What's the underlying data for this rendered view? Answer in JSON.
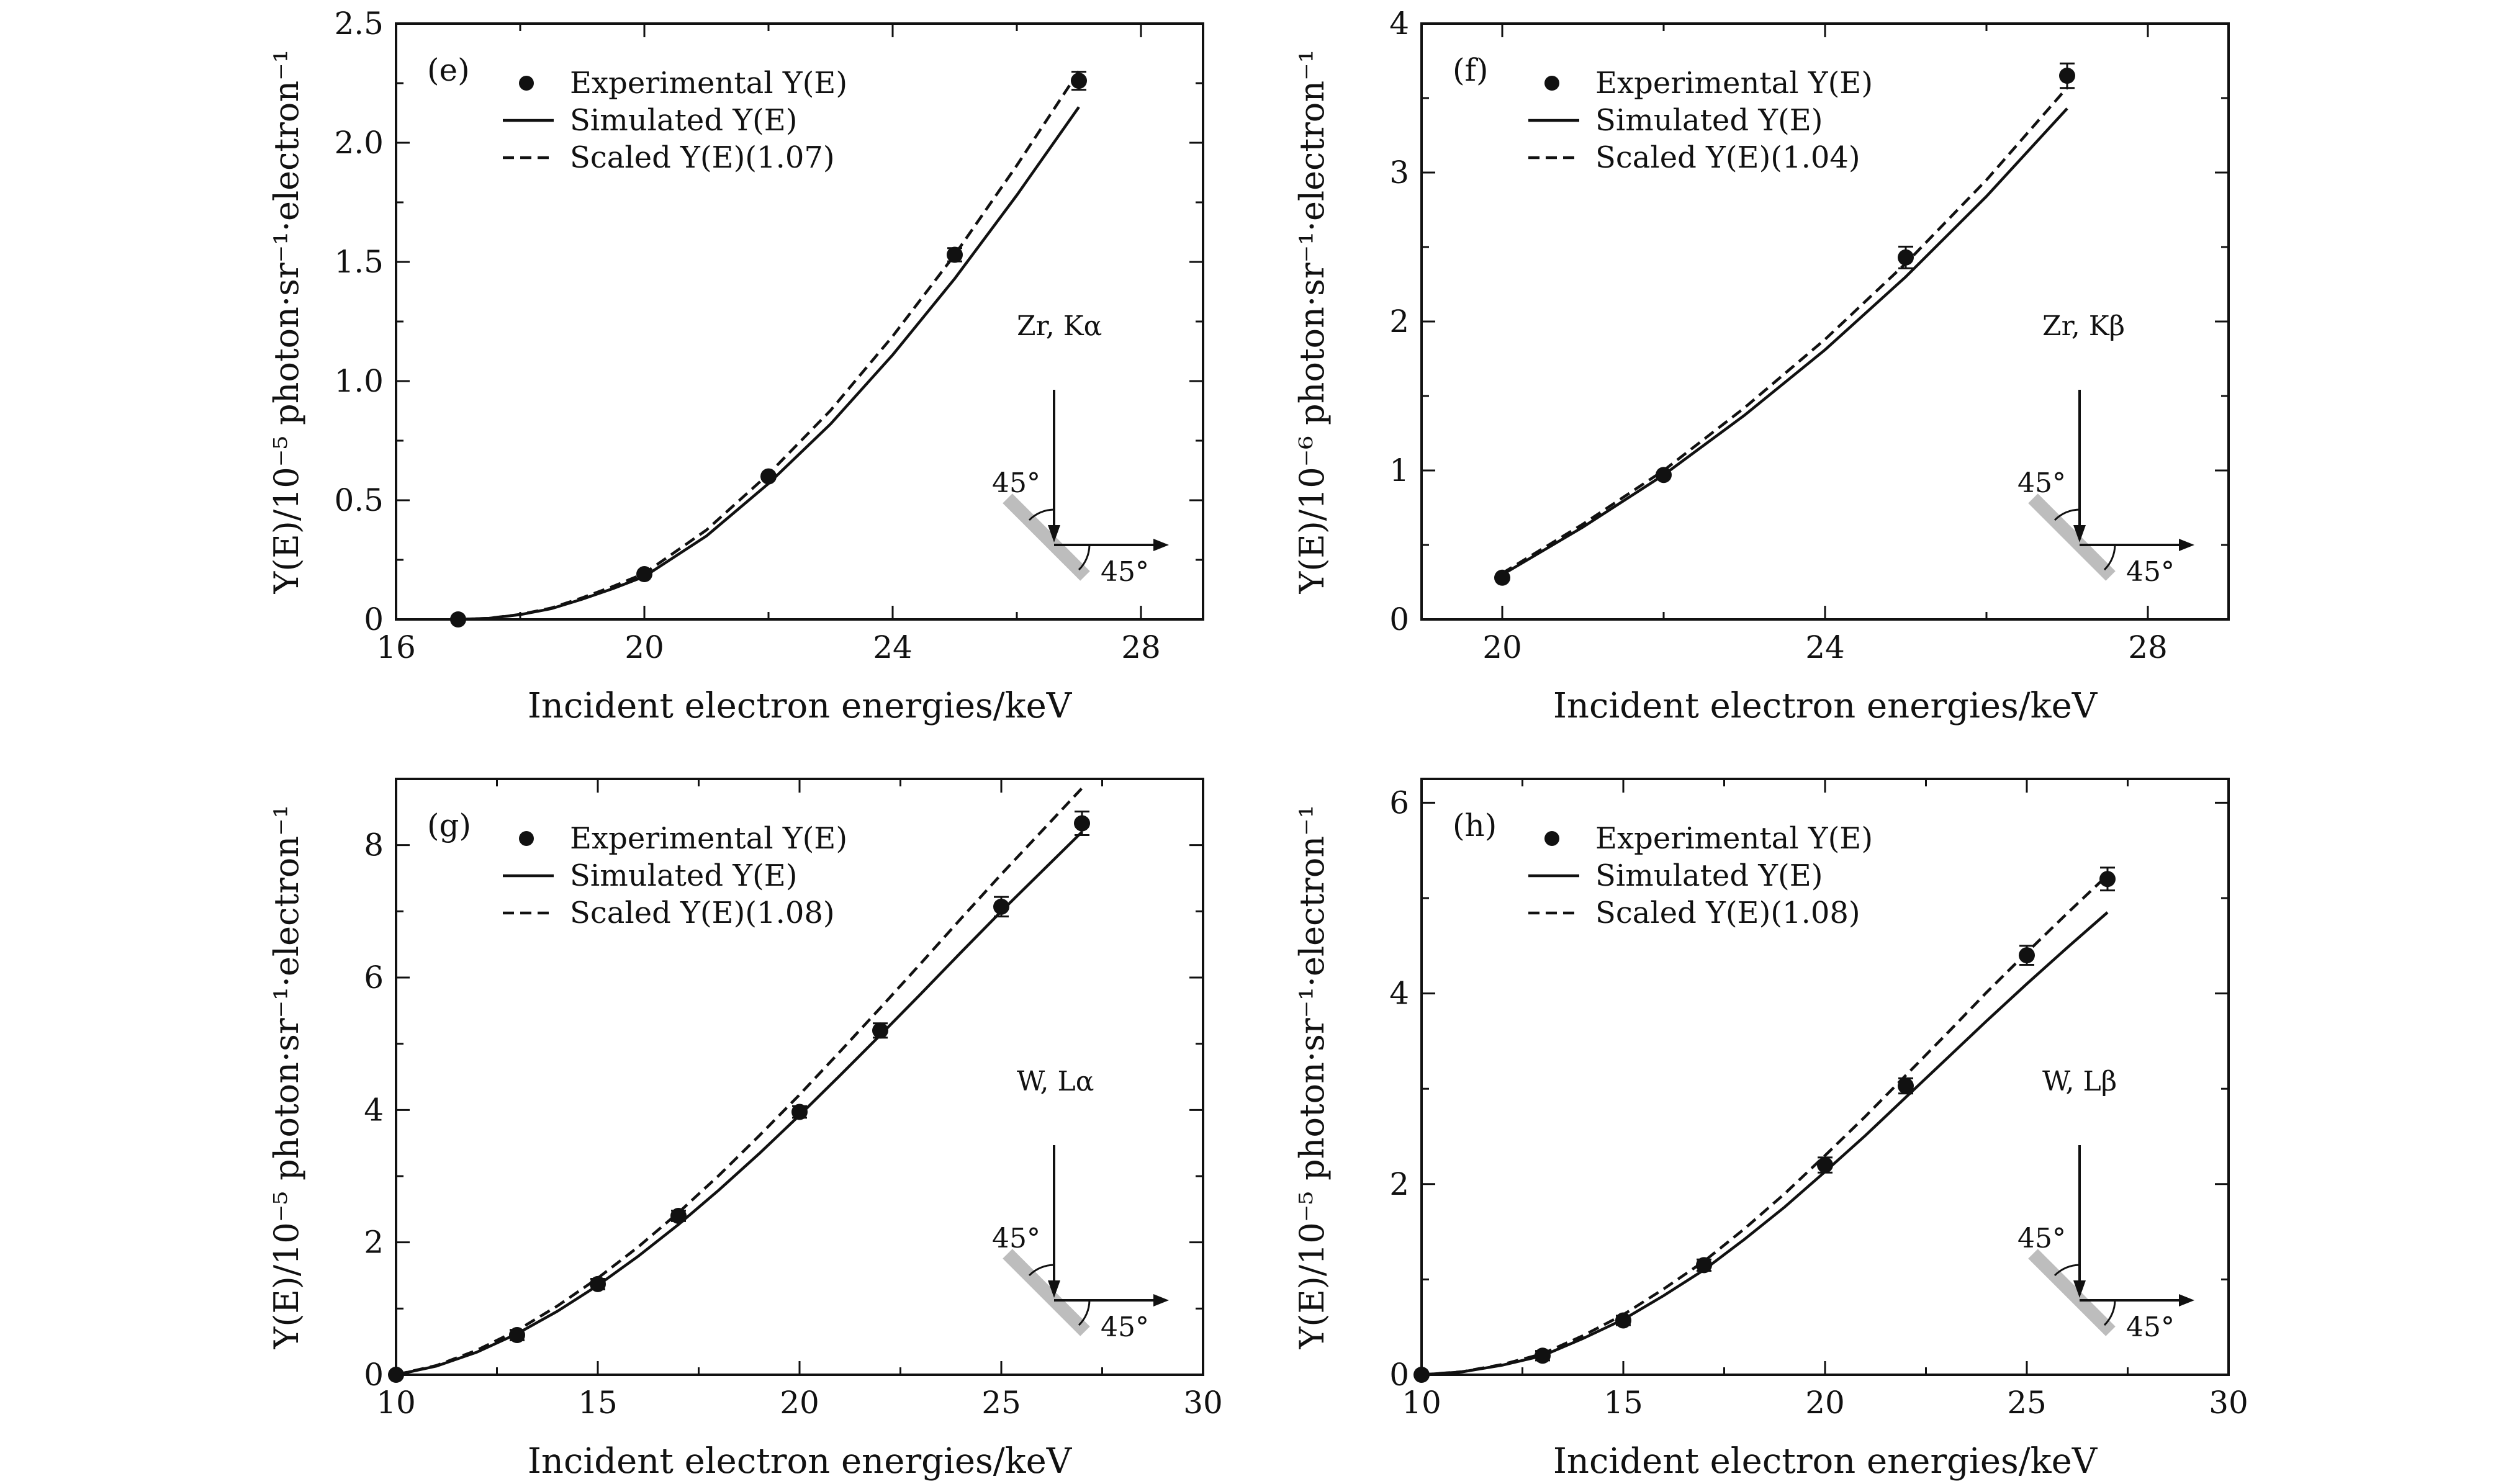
{
  "figure": {
    "legend_labels": {
      "experimental": "Experimental Y(E)",
      "simulated": "Simulated Y(E)",
      "scaled_prefix": "Scaled Y(E)"
    },
    "incidence_angle_label": "45°",
    "takeoff_angle_label": "45°",
    "xlabel": "Incident electron energies/keV"
  },
  "chart_data": [
    {
      "type": "line",
      "panel": "(e)",
      "line_label": "Zr, Kα",
      "scale_label": "(1.07)",
      "ylabel": "Y(E)/10⁻⁵ photon·sr⁻¹·electron⁻¹",
      "xlabel": "Incident electron energies/keV",
      "xlim": [
        16,
        29
      ],
      "ylim": [
        0,
        2.5
      ],
      "xticks": [
        16,
        20,
        24,
        28
      ],
      "xtick_labels": [
        "16",
        "20",
        "24",
        "28"
      ],
      "minor_xticks": [
        18,
        22,
        26
      ],
      "yticks": [
        0,
        0.5,
        1.0,
        1.5,
        2.0,
        2.5
      ],
      "ytick_labels": [
        "0",
        "0.5",
        "1.0",
        "1.5",
        "2.0",
        "2.5"
      ],
      "minor_yticks": [
        0.25,
        0.75,
        1.25,
        1.75,
        2.25
      ],
      "series": [
        {
          "name": "Experimental Y(E)",
          "style": "points",
          "x": [
            17,
            20,
            22,
            25,
            27
          ],
          "y": [
            0.0,
            0.19,
            0.6,
            1.53,
            2.26
          ],
          "err": [
            0.0,
            0.0,
            0.0,
            0.02,
            0.03
          ]
        },
        {
          "name": "Simulated Y(E)",
          "style": "solid",
          "x": [
            17,
            17.5,
            18,
            18.5,
            19,
            19.5,
            20,
            21,
            22,
            23,
            24,
            25,
            26,
            27
          ],
          "y": [
            0.0,
            0.005,
            0.02,
            0.045,
            0.085,
            0.13,
            0.18,
            0.35,
            0.57,
            0.82,
            1.11,
            1.43,
            1.78,
            2.15
          ]
        },
        {
          "name": "Scaled Y(E)",
          "style": "dashed",
          "x": [
            17,
            17.5,
            18,
            18.5,
            19,
            19.5,
            20,
            21,
            22,
            23,
            24,
            25,
            26,
            27
          ],
          "y": [
            0.0,
            0.005,
            0.021,
            0.048,
            0.091,
            0.139,
            0.193,
            0.375,
            0.61,
            0.877,
            1.188,
            1.53,
            1.905,
            2.3
          ]
        }
      ]
    },
    {
      "type": "line",
      "panel": "(f)",
      "line_label": "Zr, Kβ",
      "scale_label": "(1.04)",
      "ylabel": "Y(E)/10⁻⁶ photon·sr⁻¹·electron⁻¹",
      "xlabel": "Incident electron energies/keV",
      "xlim": [
        19,
        29
      ],
      "ylim": [
        0,
        4
      ],
      "xticks": [
        20,
        24,
        28
      ],
      "xtick_labels": [
        "20",
        "24",
        "28"
      ],
      "minor_xticks": [
        22,
        26
      ],
      "yticks": [
        0,
        1,
        2,
        3,
        4
      ],
      "ytick_labels": [
        "0",
        "1",
        "2",
        "3",
        "4"
      ],
      "minor_yticks": [
        0.5,
        1.5,
        2.5,
        3.5
      ],
      "series": [
        {
          "name": "Experimental Y(E)",
          "style": "points",
          "x": [
            20,
            22,
            25,
            27
          ],
          "y": [
            0.28,
            0.97,
            2.43,
            3.65
          ],
          "err": [
            0.0,
            0.0,
            0.06,
            0.07
          ]
        },
        {
          "name": "Simulated Y(E)",
          "style": "solid",
          "x": [
            20,
            21,
            22,
            23,
            24,
            25,
            26,
            27
          ],
          "y": [
            0.3,
            0.62,
            0.97,
            1.37,
            1.81,
            2.3,
            2.84,
            3.43
          ]
        },
        {
          "name": "Scaled Y(E)",
          "style": "dashed",
          "x": [
            20,
            21,
            22,
            23,
            24,
            25,
            26,
            27
          ],
          "y": [
            0.31,
            0.64,
            1.0,
            1.42,
            1.88,
            2.39,
            2.95,
            3.57
          ]
        }
      ]
    },
    {
      "type": "line",
      "panel": "(g)",
      "line_label": "W, Lα",
      "scale_label": "(1.08)",
      "ylabel": "Y(E)/10⁻⁵ photon·sr⁻¹·electron⁻¹",
      "xlabel": "Incident electron energies/keV",
      "xlim": [
        10,
        30
      ],
      "ylim": [
        0,
        9
      ],
      "xticks": [
        10,
        15,
        20,
        25,
        30
      ],
      "xtick_labels": [
        "10",
        "15",
        "20",
        "25",
        "30"
      ],
      "minor_xticks": [
        12.5,
        17.5,
        22.5,
        27.5
      ],
      "yticks": [
        0,
        2,
        4,
        6,
        8
      ],
      "ytick_labels": [
        "0",
        "2",
        "4",
        "6",
        "8"
      ],
      "minor_yticks": [
        1,
        3,
        5,
        7
      ],
      "series": [
        {
          "name": "Experimental Y(E)",
          "style": "points",
          "x": [
            10,
            13,
            15,
            17,
            20,
            22,
            25,
            27
          ],
          "y": [
            0.0,
            0.6,
            1.37,
            2.4,
            3.97,
            5.2,
            7.07,
            8.33
          ],
          "err": [
            0.0,
            0.05,
            0.05,
            0.05,
            0.06,
            0.08,
            0.12,
            0.15
          ]
        },
        {
          "name": "Simulated Y(E)",
          "style": "solid",
          "x": [
            10,
            11,
            12,
            13,
            14,
            15,
            16,
            17,
            18,
            19,
            20,
            21,
            22,
            23,
            24,
            25,
            26,
            27
          ],
          "y": [
            0.0,
            0.13,
            0.34,
            0.62,
            0.96,
            1.35,
            1.79,
            2.27,
            2.79,
            3.34,
            3.92,
            4.52,
            5.13,
            5.75,
            6.38,
            7.0,
            7.6,
            8.2
          ]
        },
        {
          "name": "Scaled Y(E)",
          "style": "dashed",
          "x": [
            10,
            11,
            12,
            13,
            14,
            15,
            16,
            17,
            18,
            19,
            20,
            21,
            22,
            23,
            24,
            25,
            26,
            27
          ],
          "y": [
            0.0,
            0.14,
            0.37,
            0.67,
            1.04,
            1.46,
            1.93,
            2.45,
            3.01,
            3.61,
            4.23,
            4.88,
            5.54,
            6.21,
            6.89,
            7.56,
            8.21,
            8.86
          ]
        }
      ]
    },
    {
      "type": "line",
      "panel": "(h)",
      "line_label": "W, Lβ",
      "scale_label": "(1.08)",
      "ylabel": "Y(E)/10⁻⁵ photon·sr⁻¹·electron⁻¹",
      "xlabel": "Incident electron energies/keV",
      "xlim": [
        10,
        30
      ],
      "ylim": [
        0,
        6.25
      ],
      "xticks": [
        10,
        15,
        20,
        25,
        30
      ],
      "xtick_labels": [
        "10",
        "15",
        "20",
        "25",
        "30"
      ],
      "minor_xticks": [
        12.5,
        17.5,
        22.5,
        27.5
      ],
      "yticks": [
        0,
        2,
        4,
        6
      ],
      "ytick_labels": [
        "0",
        "2",
        "4",
        "6"
      ],
      "minor_yticks": [
        1,
        3,
        5
      ],
      "series": [
        {
          "name": "Experimental Y(E)",
          "style": "points",
          "x": [
            10,
            13,
            15,
            17,
            20,
            22,
            25,
            27
          ],
          "y": [
            0.0,
            0.2,
            0.57,
            1.15,
            2.2,
            3.03,
            4.4,
            5.2
          ],
          "err": [
            0.0,
            0.03,
            0.03,
            0.04,
            0.06,
            0.06,
            0.08,
            0.1
          ]
        },
        {
          "name": "Simulated Y(E)",
          "style": "solid",
          "x": [
            10,
            11,
            12,
            13,
            14,
            15,
            16,
            17,
            18,
            19,
            20,
            21,
            22,
            23,
            24,
            25,
            26,
            27
          ],
          "y": [
            0.0,
            0.03,
            0.1,
            0.2,
            0.38,
            0.58,
            0.83,
            1.1,
            1.42,
            1.76,
            2.13,
            2.51,
            2.91,
            3.31,
            3.71,
            4.1,
            4.48,
            4.85
          ]
        },
        {
          "name": "Scaled Y(E)",
          "style": "dashed",
          "x": [
            10,
            11,
            12,
            13,
            14,
            15,
            16,
            17,
            18,
            19,
            20,
            21,
            22,
            23,
            24,
            25,
            26,
            27
          ],
          "y": [
            0.0,
            0.032,
            0.108,
            0.22,
            0.41,
            0.63,
            0.9,
            1.19,
            1.53,
            1.9,
            2.3,
            2.71,
            3.14,
            3.57,
            4.01,
            4.43,
            4.84,
            5.24
          ]
        }
      ]
    }
  ]
}
